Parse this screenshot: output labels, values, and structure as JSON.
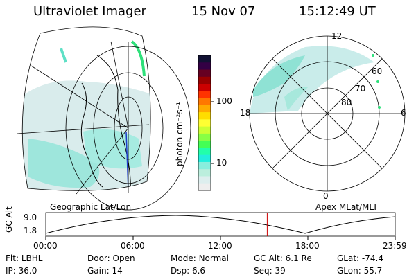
{
  "header": {
    "instrument": "Ultraviolet Imager",
    "date": "15 Nov 07",
    "time": "15:12:49 UT"
  },
  "panels": {
    "geo_label": "Geographic Lat/Lon",
    "apex_label": "Apex MLat/MLT"
  },
  "colorbar": {
    "unit_label": "photon cm⁻²s⁻¹",
    "ticks": [
      "100",
      "10"
    ],
    "colors": [
      "#111133",
      "#330044",
      "#660022",
      "#990000",
      "#cc0000",
      "#ff3300",
      "#ff7700",
      "#ffaa00",
      "#ffdd00",
      "#ffff33",
      "#ccff33",
      "#88ff44",
      "#44ff55",
      "#22ffaa",
      "#22eedd",
      "#88eedd",
      "#bbeedd",
      "#ddeeee",
      "#eeeeee"
    ]
  },
  "polar": {
    "mlt_labels": {
      "top": "12",
      "left": "18",
      "right": "6",
      "bottom": "0"
    },
    "lat_labels": [
      "60",
      "70",
      "80"
    ]
  },
  "timeline": {
    "axis_label": "GC Alt",
    "y_ticks": [
      "9.0",
      "1.8"
    ],
    "x_ticks": [
      "00:00",
      "06:00",
      "12:00",
      "18:00",
      "23:59"
    ],
    "current_marker_hour": 15.21
  },
  "status": {
    "row1": [
      {
        "label": "Flt:",
        "value": "LBHL"
      },
      {
        "label": "Door:",
        "value": "Open"
      },
      {
        "label": "Mode:",
        "value": "Normal"
      },
      {
        "label": "GC Alt:",
        "value": "6.1 Re"
      },
      {
        "label": "GLat:",
        "value": "-74.4"
      }
    ],
    "row2": [
      {
        "label": "IP:",
        "value": "36.0"
      },
      {
        "label": "Gain:",
        "value": "14"
      },
      {
        "label": "Dsp:",
        "value": "6.6"
      },
      {
        "label": "Seq:",
        "value": "39"
      },
      {
        "label": "GLon:",
        "value": "55.7"
      }
    ]
  }
}
